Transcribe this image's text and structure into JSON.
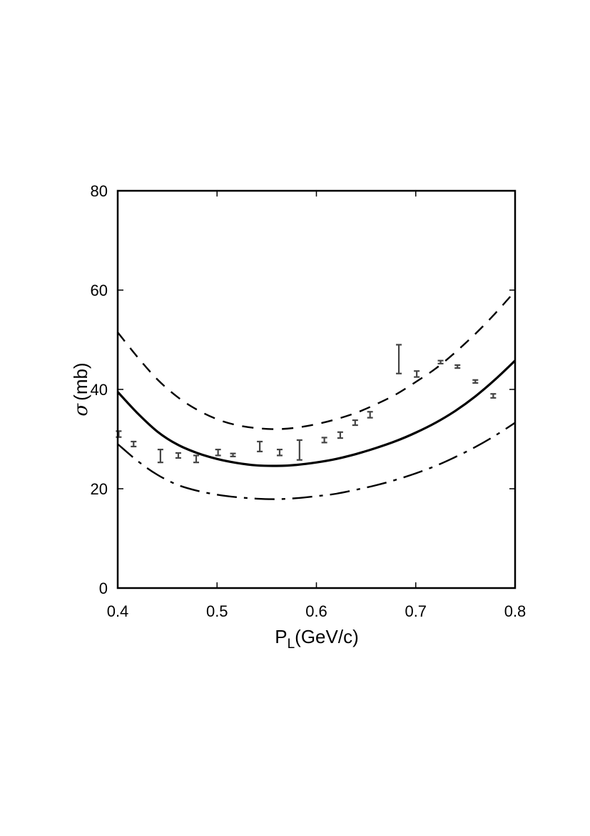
{
  "chart_data": {
    "type": "line",
    "xlabel": "P",
    "xlabel_sub": "L",
    "xlabel_unit": "(GeV/c)",
    "ylabel_symbol": "σ",
    "ylabel_unit": "(mb)",
    "xlim": [
      0.4,
      0.8
    ],
    "ylim": [
      0,
      80
    ],
    "xticks": [
      "0.4",
      "0.5",
      "0.6",
      "0.7",
      "0.8"
    ],
    "yticks": [
      "0",
      "20",
      "40",
      "60",
      "80"
    ],
    "grid": false,
    "legend": "none",
    "series": [
      {
        "style": "dashed",
        "x": [
          0.4,
          0.42,
          0.44,
          0.46,
          0.48,
          0.5,
          0.52,
          0.54,
          0.56,
          0.58,
          0.6,
          0.62,
          0.64,
          0.66,
          0.68,
          0.7,
          0.72,
          0.74,
          0.76,
          0.78,
          0.8
        ],
        "y": [
          51.5,
          46.5,
          42.0,
          38.5,
          35.9,
          34.0,
          32.8,
          32.2,
          32.0,
          32.3,
          33.0,
          34.0,
          35.3,
          37.0,
          39.0,
          41.5,
          44.2,
          47.5,
          51.2,
          55.3,
          59.8
        ]
      },
      {
        "style": "solid",
        "x": [
          0.4,
          0.42,
          0.44,
          0.46,
          0.48,
          0.5,
          0.52,
          0.54,
          0.56,
          0.58,
          0.6,
          0.62,
          0.64,
          0.66,
          0.68,
          0.7,
          0.72,
          0.74,
          0.76,
          0.78,
          0.8
        ],
        "y": [
          39.5,
          35.2,
          31.5,
          28.9,
          27.2,
          26.0,
          25.2,
          24.7,
          24.6,
          24.8,
          25.3,
          26.0,
          27.0,
          28.2,
          29.6,
          31.3,
          33.3,
          35.7,
          38.6,
          42.0,
          45.8
        ]
      },
      {
        "style": "dash-dot",
        "x": [
          0.4,
          0.42,
          0.44,
          0.46,
          0.48,
          0.5,
          0.52,
          0.54,
          0.56,
          0.58,
          0.6,
          0.62,
          0.64,
          0.66,
          0.68,
          0.7,
          0.72,
          0.74,
          0.76,
          0.78,
          0.8
        ],
        "y": [
          29.0,
          25.6,
          22.8,
          20.8,
          19.6,
          18.8,
          18.3,
          18.0,
          17.9,
          18.1,
          18.5,
          19.0,
          19.8,
          20.7,
          21.8,
          23.1,
          24.6,
          26.4,
          28.4,
          30.7,
          33.3
        ]
      }
    ],
    "data_points": [
      {
        "x": 0.401,
        "y": 31.0,
        "err": 0.6
      },
      {
        "x": 0.416,
        "y": 29.0,
        "err": 0.5
      },
      {
        "x": 0.443,
        "y": 26.6,
        "err": 1.3
      },
      {
        "x": 0.461,
        "y": 26.7,
        "err": 0.5
      },
      {
        "x": 0.479,
        "y": 26.0,
        "err": 0.7
      },
      {
        "x": 0.501,
        "y": 27.3,
        "err": 0.6
      },
      {
        "x": 0.516,
        "y": 26.8,
        "err": 0.3
      },
      {
        "x": 0.543,
        "y": 28.5,
        "err": 1.0
      },
      {
        "x": 0.563,
        "y": 27.3,
        "err": 0.6
      },
      {
        "x": 0.583,
        "y": 27.8,
        "err": 2.0
      },
      {
        "x": 0.608,
        "y": 29.8,
        "err": 0.5
      },
      {
        "x": 0.624,
        "y": 30.8,
        "err": 0.6
      },
      {
        "x": 0.639,
        "y": 33.3,
        "err": 0.5
      },
      {
        "x": 0.654,
        "y": 34.9,
        "err": 0.6
      },
      {
        "x": 0.683,
        "y": 46.1,
        "err": 2.9
      },
      {
        "x": 0.701,
        "y": 43.1,
        "err": 0.6
      },
      {
        "x": 0.725,
        "y": 45.5,
        "err": 0.3
      },
      {
        "x": 0.742,
        "y": 44.6,
        "err": 0.3
      },
      {
        "x": 0.76,
        "y": 41.6,
        "err": 0.3
      },
      {
        "x": 0.778,
        "y": 38.7,
        "err": 0.4
      }
    ]
  }
}
